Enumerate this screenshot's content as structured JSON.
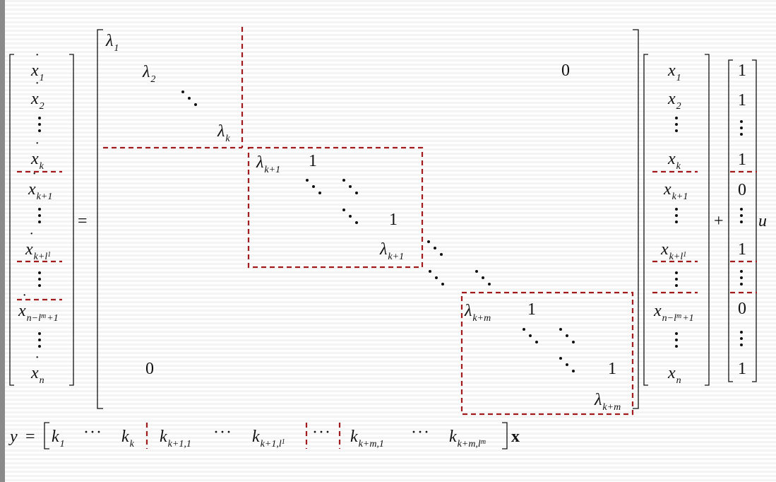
{
  "equation": {
    "lhs": {
      "base": "x",
      "subscripts": [
        "1",
        "2",
        "k",
        "k+1",
        "k+l",
        "1",
        "n−l",
        "m",
        "+1",
        "n"
      ]
    },
    "equals": "=",
    "A": {
      "lambda": "λ",
      "subscripts": [
        "1",
        "2",
        "k",
        "k+1",
        "k+1",
        "k+m",
        "k+m"
      ],
      "ones": [
        "1",
        "1",
        "1",
        "1"
      ],
      "zero_top": "0",
      "zero_bottom": "0"
    },
    "state": {
      "base": "x",
      "subscripts": [
        "1",
        "2",
        "k",
        "k+1",
        "k+l",
        "1",
        "n−l",
        "m",
        "+1",
        "n"
      ]
    },
    "plus": "+",
    "b": [
      "1",
      "1",
      "1",
      "0",
      "1",
      "0",
      "1"
    ],
    "input": "u"
  },
  "output": {
    "y": "y",
    "equals": "=",
    "k": "k",
    "subscripts": [
      "1",
      "k",
      "k+1,1",
      "k+1,l",
      "1",
      "k+m,1",
      "k+m,l",
      "m"
    ],
    "dots": "···",
    "x_bold": "x"
  },
  "colors": {
    "partition": "#a31a1a",
    "text": "#111111"
  }
}
